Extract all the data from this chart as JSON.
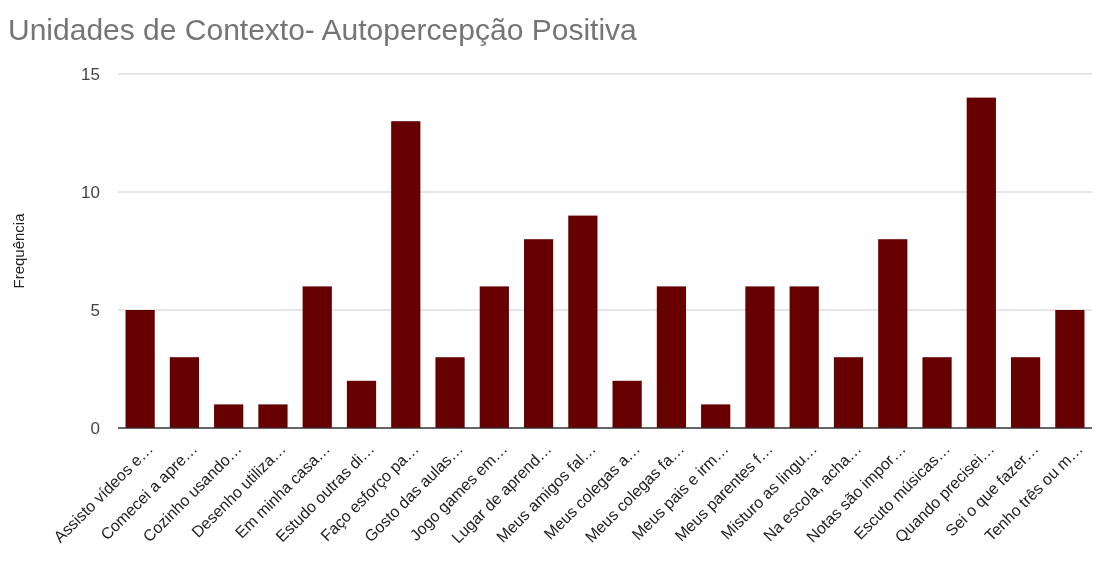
{
  "chart_data": {
    "type": "bar",
    "title": "Unidades de Contexto- Autopercepção Positiva",
    "ylabel": "Frequência",
    "categories": [
      "Assisto vídeos e…",
      "Comecei a apre…",
      "Cozinho usando…",
      "Desenho utiliza…",
      "Em minha casa…",
      "Estudo outras di…",
      "Faço esforço pa…",
      "Gosto das aulas…",
      "Jogo games em…",
      "Lugar de aprend…",
      "Meus amigos fal…",
      "Meus colegas a…",
      "Meus colegas fa…",
      "Meus pais e irm…",
      "Meus parentes f…",
      "Misturo as lingu…",
      "Na escola, acha…",
      "Notas são impor…",
      "Escuto músicas…",
      "Quando precisei…",
      "Sei o que fazer…",
      "Tenho três ou m…"
    ],
    "values": [
      5,
      3,
      1,
      1,
      6,
      2,
      13,
      3,
      6,
      8,
      9,
      2,
      6,
      1,
      6,
      6,
      3,
      8,
      3,
      14,
      3,
      5
    ],
    "color": "#660000",
    "ylim": [
      0,
      15
    ],
    "yticks": [
      0,
      5,
      10,
      15
    ],
    "grid": "y"
  }
}
